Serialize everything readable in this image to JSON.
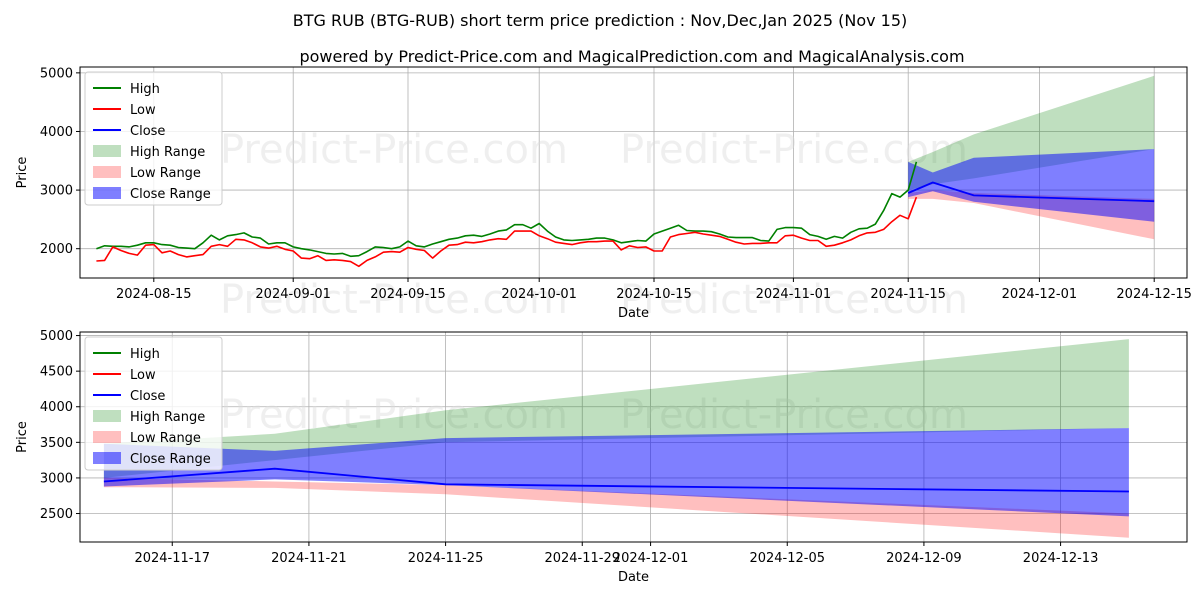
{
  "chart_data": {
    "title": "BTG RUB (BTG-RUB) short term price prediction : Nov,Dec,Jan 2025 (Nov 15)",
    "subtitle": "powered by Predict-Price.com and MagicalPrediction.com and MagicalAnalysis.com",
    "watermark": "Predict-Price.com",
    "colors": {
      "high": "#008000",
      "low": "#ff0000",
      "close": "#0000ff",
      "high_range": "#008000",
      "low_range": "#ff0000",
      "close_range": "#0000ff",
      "grid": "#b0b0b0"
    },
    "legend": {
      "placement": "top-left",
      "entries": [
        "High",
        "Low",
        "Close",
        "High Range",
        "Low Range",
        "Close Range"
      ]
    },
    "charts": [
      {
        "type": "line",
        "xlabel": "Date",
        "ylabel": "Price",
        "ylim": [
          1500,
          5100
        ],
        "xlim_days": [
          -2,
          133
        ],
        "x_origin": "2024-08-08",
        "yticks": [
          2000,
          3000,
          4000,
          5000
        ],
        "xticks": [
          {
            "day": 7,
            "label": "2024-08-15"
          },
          {
            "day": 24,
            "label": "2024-09-01"
          },
          {
            "day": 38,
            "label": "2024-09-15"
          },
          {
            "day": 54,
            "label": "2024-10-01"
          },
          {
            "day": 68,
            "label": "2024-10-15"
          },
          {
            "day": 85,
            "label": "2024-11-01"
          },
          {
            "day": 99,
            "label": "2024-11-15"
          },
          {
            "day": 115,
            "label": "2024-12-01"
          },
          {
            "day": 129,
            "label": "2024-12-15"
          }
        ],
        "history_start_day": 0,
        "high": [
          2000,
          2050,
          2040,
          2040,
          2030,
          2060,
          2100,
          2100,
          2070,
          2060,
          2020,
          2010,
          2000,
          2100,
          2230,
          2150,
          2220,
          2240,
          2270,
          2200,
          2180,
          2080,
          2100,
          2100,
          2030,
          2000,
          1980,
          1950,
          1920,
          1910,
          1920,
          1870,
          1880,
          1950,
          2030,
          2020,
          2000,
          2030,
          2130,
          2050,
          2030,
          2080,
          2120,
          2160,
          2180,
          2220,
          2230,
          2210,
          2250,
          2300,
          2320,
          2410,
          2410,
          2350,
          2430,
          2300,
          2200,
          2150,
          2140,
          2150,
          2160,
          2180,
          2180,
          2150,
          2100,
          2120,
          2140,
          2130,
          2250,
          2300,
          2350,
          2400,
          2310,
          2300,
          2300,
          2290,
          2250,
          2200,
          2190,
          2190,
          2190,
          2140,
          2130,
          2330,
          2360,
          2360,
          2350,
          2240,
          2210,
          2160,
          2210,
          2180,
          2280,
          2340,
          2350,
          2420,
          2650,
          2940,
          2880,
          3000,
          3480
        ],
        "low": [
          1790,
          1800,
          2030,
          1970,
          1920,
          1890,
          2060,
          2070,
          1930,
          1960,
          1900,
          1860,
          1880,
          1900,
          2040,
          2070,
          2040,
          2160,
          2150,
          2100,
          2030,
          2010,
          2040,
          1990,
          1960,
          1840,
          1830,
          1880,
          1800,
          1810,
          1800,
          1780,
          1700,
          1800,
          1860,
          1940,
          1950,
          1940,
          2020,
          1990,
          1970,
          1840,
          1960,
          2060,
          2070,
          2110,
          2100,
          2120,
          2150,
          2170,
          2160,
          2300,
          2300,
          2300,
          2220,
          2170,
          2110,
          2090,
          2070,
          2100,
          2120,
          2120,
          2130,
          2130,
          1980,
          2050,
          2020,
          2030,
          1960,
          1960,
          2200,
          2240,
          2260,
          2280,
          2250,
          2230,
          2210,
          2160,
          2110,
          2080,
          2090,
          2090,
          2100,
          2100,
          2220,
          2230,
          2180,
          2140,
          2140,
          2040,
          2060,
          2100,
          2150,
          2220,
          2270,
          2280,
          2330,
          2460,
          2570,
          2510,
          2880
        ],
        "forecast_days": [
          99,
          102,
          107,
          129
        ],
        "close_forecast": [
          2950,
          3130,
          2910,
          2810
        ],
        "high_range_upper": [
          3480,
          3650,
          3950,
          4950
        ],
        "high_range_lower": [
          3000,
          3100,
          3200,
          3700
        ],
        "low_range_upper": [
          2950,
          3000,
          2950,
          2850
        ],
        "low_range_lower": [
          2850,
          2850,
          2780,
          2160
        ],
        "close_range_upper": [
          3480,
          3300,
          3550,
          3700
        ],
        "close_range_lower": [
          2880,
          2980,
          2800,
          2460
        ]
      },
      {
        "type": "line",
        "xlabel": "Date",
        "ylabel": "Price",
        "ylim": [
          2100,
          5050
        ],
        "xlim_days": [
          98.3,
          130.7
        ],
        "x_origin": "2024-08-08",
        "yticks": [
          2500,
          3000,
          3500,
          4000,
          4500,
          5000
        ],
        "xticks": [
          {
            "day": 101,
            "label": "2024-11-17"
          },
          {
            "day": 105,
            "label": "2024-11-21"
          },
          {
            "day": 109,
            "label": "2024-11-25"
          },
          {
            "day": 113,
            "label": "2024-11-29"
          },
          {
            "day": 115,
            "label": "2024-12-01"
          },
          {
            "day": 119,
            "label": "2024-12-05"
          },
          {
            "day": 123,
            "label": "2024-12-09"
          },
          {
            "day": 127,
            "label": "2024-12-13"
          }
        ],
        "forecast_days": [
          99,
          104,
          109,
          129
        ],
        "close_forecast": [
          2950,
          3130,
          2910,
          2810
        ],
        "high_range_upper": [
          3480,
          3620,
          3950,
          4950
        ],
        "high_range_lower": [
          3000,
          3250,
          3500,
          3700
        ],
        "low_range_upper": [
          3000,
          2950,
          2900,
          2500
        ],
        "low_range_lower": [
          2870,
          2860,
          2770,
          2160
        ],
        "close_range_upper": [
          3480,
          3380,
          3560,
          3700
        ],
        "close_range_lower": [
          2880,
          2980,
          2900,
          2460
        ]
      }
    ]
  }
}
